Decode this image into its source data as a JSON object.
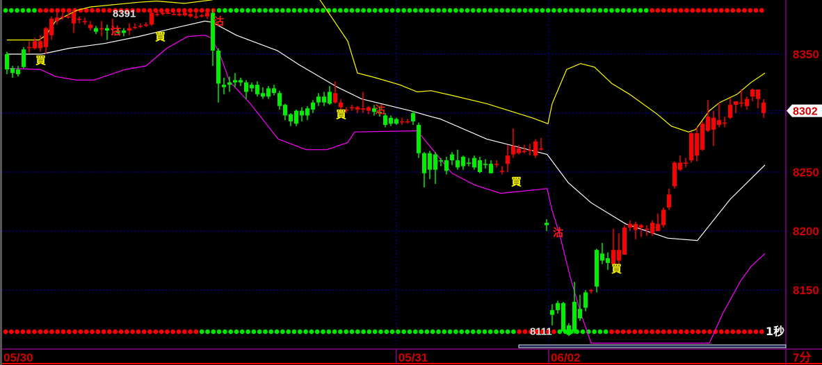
{
  "chart_data": {
    "type": "candlestick",
    "title": "",
    "xlabel": "",
    "ylabel": "",
    "ylim": [
      8106,
      8396
    ],
    "y_ticks": [
      8350,
      8300,
      8250,
      8200,
      8150
    ],
    "y_tick_labels": [
      "8350",
      "8250",
      "8200",
      "8150"
    ],
    "grid": true,
    "interval_label": "7分",
    "refresh_label": "1秒",
    "last_price": "8302",
    "high_label": "8391",
    "low_label": "8111",
    "colors": {
      "up": "#ff0000",
      "down": "#00ee00",
      "upper_band": "#ffff00",
      "middle_band": "#ffffff",
      "lower_band": "#ff00ff",
      "grid": "#0000cc",
      "axis": "#8a008a",
      "axis_text": "#d00000",
      "buy_marker": "#ffff00",
      "sell_marker": "#ff1a1a"
    },
    "date_labels": [
      {
        "label": "05/30",
        "index": 0
      },
      {
        "label": "05/31",
        "index": 70.6
      },
      {
        "label": "06/02",
        "index": 98
      }
    ],
    "ohlc": [
      [
        8350,
        8352,
        8333,
        8337
      ],
      [
        8338,
        8340,
        8330,
        8334
      ],
      [
        8337,
        8340,
        8331,
        8333
      ],
      [
        8354,
        8356,
        8338,
        8339
      ],
      [
        8356,
        8361,
        8351,
        8356
      ],
      [
        8355,
        8364,
        8354,
        8361
      ],
      [
        8355,
        8366,
        8352,
        8361
      ],
      [
        8356,
        8373,
        8350,
        8372
      ],
      [
        8366,
        8382,
        8362,
        8380
      ],
      [
        8378,
        8386,
        8375,
        8381
      ],
      [
        8381,
        8385,
        8379,
        8382
      ],
      [
        8382,
        8385,
        8380,
        8382
      ],
      [
        8376,
        8387,
        8368,
        8385
      ],
      [
        8379,
        8382,
        8376,
        8380
      ],
      [
        8377,
        8381,
        8375,
        8378
      ],
      [
        8372,
        8378,
        8370,
        8375
      ],
      [
        8372,
        8374,
        8367,
        8369
      ],
      [
        8371,
        8378,
        8365,
        8372
      ],
      [
        8372,
        8375,
        8362,
        8370
      ],
      [
        8371,
        8380,
        8366,
        8372
      ],
      [
        8370,
        8372,
        8367,
        8368
      ],
      [
        8370,
        8372,
        8365,
        8368
      ],
      [
        8370,
        8376,
        8366,
        8372
      ],
      [
        8373,
        8376,
        8371,
        8373
      ],
      [
        8374,
        8376,
        8372,
        8374
      ],
      [
        8375,
        8377,
        8373,
        8375
      ],
      [
        8375,
        8387,
        8374,
        8385
      ],
      [
        8384,
        8386,
        8382,
        8384
      ],
      [
        8384,
        8387,
        8383,
        8385
      ],
      [
        8385,
        8386,
        8384,
        8385
      ],
      [
        8384,
        8386,
        8383,
        8384
      ],
      [
        8383,
        8386,
        8382,
        8384
      ],
      [
        8383,
        8388,
        8382,
        8385
      ],
      [
        8382,
        8386,
        8381,
        8384
      ],
      [
        8381,
        8385,
        8380,
        8382
      ],
      [
        8382,
        8384,
        8381,
        8383
      ],
      [
        8382,
        8388,
        8380,
        8385
      ],
      [
        8385,
        8388,
        8340,
        8353
      ],
      [
        8353,
        8355,
        8309,
        8325
      ],
      [
        8324,
        8330,
        8316,
        8322
      ],
      [
        8326,
        8331,
        8318,
        8324
      ],
      [
        8328,
        8334,
        8322,
        8326
      ],
      [
        8328,
        8330,
        8323,
        8326
      ],
      [
        8326,
        8328,
        8312,
        8318
      ],
      [
        8324,
        8326,
        8318,
        8321
      ],
      [
        8324,
        8327,
        8314,
        8316
      ],
      [
        8317,
        8322,
        8312,
        8314
      ],
      [
        8321,
        8323,
        8312,
        8314
      ],
      [
        8321,
        8324,
        8315,
        8317
      ],
      [
        8317,
        8319,
        8303,
        8306
      ],
      [
        8307,
        8308,
        8294,
        8298
      ],
      [
        8299,
        8300,
        8289,
        8293
      ],
      [
        8302,
        8303,
        8289,
        8291
      ],
      [
        8302,
        8305,
        8293,
        8298
      ],
      [
        8304,
        8306,
        8294,
        8298
      ],
      [
        8309,
        8311,
        8300,
        8303
      ],
      [
        8314,
        8317,
        8306,
        8309
      ],
      [
        8314,
        8318,
        8306,
        8309
      ],
      [
        8318,
        8323,
        8307,
        8308
      ],
      [
        8309,
        8327,
        8308,
        8317
      ],
      [
        8305,
        8312,
        8300,
        8309
      ],
      [
        8303,
        8305,
        8300,
        8303
      ],
      [
        8304,
        8307,
        8302,
        8305
      ],
      [
        8303,
        8306,
        8300,
        8305
      ],
      [
        8303,
        8318,
        8300,
        8304
      ],
      [
        8302,
        8306,
        8299,
        8305
      ],
      [
        8304,
        8307,
        8298,
        8301
      ],
      [
        8301,
        8306,
        8297,
        8300
      ],
      [
        8298,
        8300,
        8288,
        8290
      ],
      [
        8296,
        8298,
        8289,
        8291
      ],
      [
        8295,
        8296,
        8290,
        8291
      ],
      [
        8293,
        8296,
        8290,
        8293
      ],
      [
        8293,
        8295,
        8291,
        8293
      ],
      [
        8300,
        8302,
        8290,
        8293
      ],
      [
        8290,
        8292,
        8262,
        8266
      ],
      [
        8266,
        8267,
        8237,
        8249
      ],
      [
        8266,
        8268,
        8244,
        8252
      ],
      [
        8265,
        8267,
        8240,
        8252
      ],
      [
        8260,
        8262,
        8255,
        8259
      ],
      [
        8260,
        8263,
        8248,
        8251
      ],
      [
        8265,
        8267,
        8256,
        8260
      ],
      [
        8260,
        8269,
        8252,
        8254
      ],
      [
        8263,
        8264,
        8252,
        8255
      ],
      [
        8258,
        8262,
        8255,
        8257
      ],
      [
        8262,
        8264,
        8252,
        8254
      ],
      [
        8260,
        8263,
        8249,
        8250
      ],
      [
        8257,
        8261,
        8253,
        8256
      ],
      [
        8257,
        8260,
        8249,
        8249
      ],
      [
        8257,
        8260,
        8254,
        8257
      ],
      [
        8251,
        8255,
        8248,
        8251
      ],
      [
        8257,
        8273,
        8250,
        8264
      ],
      [
        8265,
        8287,
        8262,
        8272
      ],
      [
        8266,
        8273,
        8265,
        8270
      ],
      [
        8267,
        8273,
        8266,
        8268
      ],
      [
        8268,
        8274,
        8264,
        8269
      ],
      [
        8264,
        8278,
        8262,
        8276
      ],
      [
        8270,
        8279,
        8268,
        8270
      ],
      [
        8207,
        8210,
        8200,
        8205
      ],
      [
        8133,
        8138,
        8120,
        8129
      ],
      [
        8139,
        8141,
        8130,
        8133
      ],
      [
        8139,
        8140,
        8115,
        8115
      ],
      [
        8120,
        8122,
        8111,
        8112
      ],
      [
        8140,
        8157,
        8113,
        8115
      ],
      [
        8134,
        8146,
        8124,
        8126
      ],
      [
        8148,
        8150,
        8132,
        8135
      ],
      [
        8150,
        8151,
        8147,
        8150
      ],
      [
        8184,
        8185,
        8148,
        8153
      ],
      [
        8181,
        8190,
        8172,
        8175
      ],
      [
        8177,
        8182,
        8167,
        8173
      ],
      [
        8172,
        8202,
        8172,
        8184
      ],
      [
        8175,
        8198,
        8172,
        8184
      ],
      [
        8180,
        8205,
        8180,
        8203
      ],
      [
        8203,
        8209,
        8200,
        8206
      ],
      [
        8201,
        8208,
        8193,
        8206
      ],
      [
        8203,
        8206,
        8195,
        8205
      ],
      [
        8202,
        8205,
        8196,
        8202
      ],
      [
        8198,
        8209,
        8196,
        8207
      ],
      [
        8200,
        8215,
        8200,
        8206
      ],
      [
        8205,
        8220,
        8203,
        8218
      ],
      [
        8220,
        8236,
        8218,
        8231
      ],
      [
        8238,
        8259,
        8236,
        8258
      ],
      [
        8252,
        8264,
        8251,
        8258
      ],
      [
        8257,
        8262,
        8254,
        8258
      ],
      [
        8260,
        8284,
        8258,
        8283
      ],
      [
        8264,
        8288,
        8259,
        8283
      ],
      [
        8269,
        8293,
        8268,
        8291
      ],
      [
        8285,
        8311,
        8284,
        8297
      ],
      [
        8286,
        8302,
        8272,
        8296
      ],
      [
        8290,
        8309,
        8288,
        8294
      ],
      [
        8291,
        8297,
        8288,
        8292
      ],
      [
        8296,
        8313,
        8295,
        8307
      ],
      [
        8307,
        8310,
        8300,
        8310
      ],
      [
        8308,
        8320,
        8305,
        8309
      ],
      [
        8306,
        8314,
        8303,
        8312
      ],
      [
        8314,
        8321,
        8310,
        8320
      ],
      [
        8312,
        8320,
        8304,
        8320
      ],
      [
        8300,
        8312,
        8296,
        8309
      ]
    ],
    "bands": {
      "upper": [
        [
          0,
          8362
        ],
        [
          5.75,
          8362
        ],
        [
          7,
          8366
        ],
        [
          8.75,
          8378
        ],
        [
          12.5,
          8387
        ],
        [
          15,
          8390
        ],
        [
          23.75,
          8394
        ],
        [
          26.9,
          8395
        ],
        [
          31.9,
          8393
        ],
        [
          36.9,
          8396
        ],
        [
          46.25,
          8419
        ],
        [
          56.25,
          8396
        ],
        [
          61.25,
          8361
        ],
        [
          63,
          8334
        ],
        [
          66.25,
          8330
        ],
        [
          70.6,
          8324
        ],
        [
          73.75,
          8318
        ],
        [
          76.25,
          8319
        ],
        [
          80,
          8315
        ],
        [
          86.25,
          8308
        ],
        [
          94.4,
          8296
        ],
        [
          97.25,
          8291
        ],
        [
          98,
          8308
        ],
        [
          100.6,
          8337
        ],
        [
          103.1,
          8342
        ],
        [
          105.6,
          8339
        ],
        [
          108.75,
          8325
        ],
        [
          111.9,
          8316
        ],
        [
          116.9,
          8299
        ],
        [
          119.4,
          8289
        ],
        [
          122.5,
          8284
        ],
        [
          123.75,
          8286
        ],
        [
          126.25,
          8302
        ],
        [
          128.1,
          8309
        ],
        [
          131.25,
          8316
        ],
        [
          133.75,
          8326
        ],
        [
          136.25,
          8334
        ]
      ],
      "middle": [
        [
          0,
          8350
        ],
        [
          6.25,
          8350
        ],
        [
          11.25,
          8355
        ],
        [
          17.5,
          8359
        ],
        [
          23.75,
          8365
        ],
        [
          30,
          8372
        ],
        [
          35.6,
          8378
        ],
        [
          36.9,
          8377
        ],
        [
          41.25,
          8366
        ],
        [
          48.6,
          8353
        ],
        [
          52.5,
          8341
        ],
        [
          59.4,
          8322
        ],
        [
          63.75,
          8312
        ],
        [
          72.5,
          8302
        ],
        [
          76.25,
          8297
        ],
        [
          77.9,
          8295
        ],
        [
          86.25,
          8278
        ],
        [
          97.1,
          8265
        ],
        [
          100.9,
          8241
        ],
        [
          105,
          8224
        ],
        [
          111.25,
          8206
        ],
        [
          118.75,
          8194
        ],
        [
          124.1,
          8192
        ],
        [
          130,
          8227
        ],
        [
          136.25,
          8256
        ]
      ],
      "lower": [
        [
          0,
          8338
        ],
        [
          6,
          8337
        ],
        [
          8.75,
          8331
        ],
        [
          12.5,
          8328
        ],
        [
          15.6,
          8328
        ],
        [
          21.25,
          8337
        ],
        [
          25,
          8340
        ],
        [
          28.75,
          8355
        ],
        [
          32.5,
          8365
        ],
        [
          35.6,
          8366
        ],
        [
          36.6,
          8364
        ],
        [
          38.1,
          8352
        ],
        [
          40,
          8327
        ],
        [
          43.75,
          8308
        ],
        [
          48.75,
          8278
        ],
        [
          53.75,
          8269
        ],
        [
          57.5,
          8269
        ],
        [
          61.25,
          8275
        ],
        [
          62.5,
          8284
        ],
        [
          73.75,
          8285
        ],
        [
          80,
          8249
        ],
        [
          84.1,
          8239
        ],
        [
          88.75,
          8232
        ],
        [
          97.1,
          8236
        ],
        [
          97.9,
          8219
        ],
        [
          99.4,
          8196
        ],
        [
          101.25,
          8161
        ],
        [
          103.1,
          8131
        ],
        [
          105,
          8105
        ],
        [
          126.25,
          8105
        ],
        [
          128.75,
          8131
        ],
        [
          131.9,
          8158
        ],
        [
          133.75,
          8170
        ],
        [
          136.25,
          8181
        ]
      ]
    },
    "signals": [
      {
        "type": "buy",
        "label": "買",
        "index": 6,
        "price": 8346
      },
      {
        "type": "buy",
        "label": "買",
        "index": 27.5,
        "price": 8366
      },
      {
        "type": "buy",
        "label": "買",
        "index": 60,
        "price": 8300
      },
      {
        "type": "buy",
        "label": "買",
        "index": 91.5,
        "price": 8243
      },
      {
        "type": "buy",
        "label": "買",
        "index": 109.5,
        "price": 8169
      },
      {
        "type": "sell",
        "label": "沽",
        "index": 19.5,
        "price": 8371
      },
      {
        "type": "sell",
        "label": "沽",
        "index": 38,
        "price": 8379
      },
      {
        "type": "sell",
        "label": "沽",
        "index": 67,
        "price": 8304
      },
      {
        "type": "sell",
        "label": "沽",
        "index": 99,
        "price": 8200
      }
    ],
    "indicator_dots": {
      "top": [
        [
          "green",
          6
        ],
        [
          "red",
          31
        ],
        [
          "green",
          75
        ],
        [
          "red",
          20
        ]
      ],
      "bottom": [
        [
          "red",
          34
        ],
        [
          "green",
          55
        ],
        [
          "red",
          7
        ],
        [
          "green",
          9
        ],
        [
          "red",
          27
        ]
      ]
    }
  }
}
